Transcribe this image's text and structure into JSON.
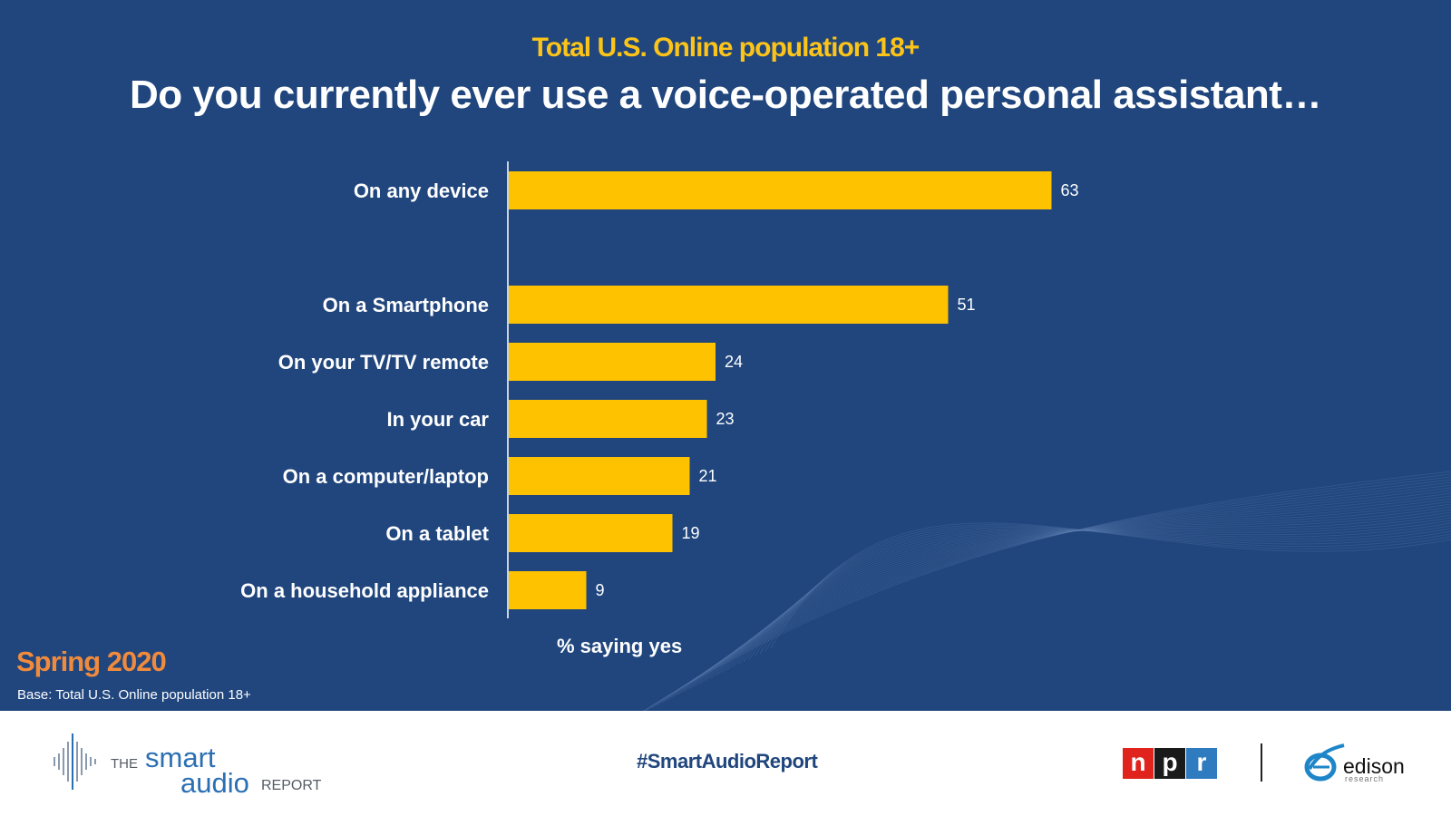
{
  "header": {
    "subtitle": "Total U.S. Online population 18+",
    "title": "Do you currently ever use a voice-operated personal assistant…"
  },
  "chart_data": {
    "type": "bar",
    "orientation": "horizontal",
    "title": "Do you currently ever use a voice-operated personal assistant…",
    "subtitle": "Total U.S. Online population 18+",
    "categories": [
      "On any device",
      "On a Smartphone",
      "On your TV/TV remote",
      "In your car",
      "On a computer/laptop",
      "On a tablet",
      "On a household appliance"
    ],
    "values": [
      63,
      51,
      24,
      23,
      21,
      19,
      9
    ],
    "xlabel": "% saying yes",
    "ylabel": "",
    "xlim": [
      0,
      100
    ],
    "grid": false,
    "legend": "none",
    "bar_color": "#fec200"
  },
  "footer": {
    "season": "Spring 2020",
    "base": "Base: Total U.S. Online population 18+",
    "hashtag": "#SmartAudioReport"
  },
  "logos": {
    "report_the": "THE",
    "report_smart": "smart",
    "report_audio": "audio",
    "report_word": "REPORT",
    "npr_letters": [
      "n",
      "p",
      "r"
    ],
    "npr_colors": [
      "#e0231c",
      "#1a1a1a",
      "#2f7bbf"
    ],
    "edison_name": "edison",
    "edison_sub": "research"
  },
  "colors": {
    "background": "#20467d",
    "accent": "#fcc419",
    "season": "#f08a3c"
  }
}
